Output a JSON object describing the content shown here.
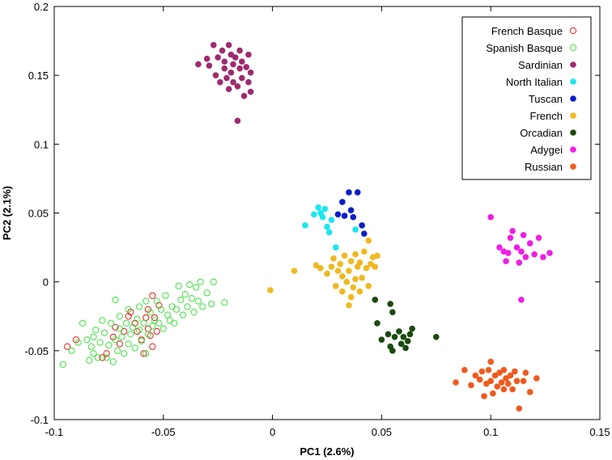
{
  "chart_data": {
    "type": "scatter",
    "title": "",
    "xlabel": "PC1 (2.6%)",
    "ylabel": "PC2 (2.1%)",
    "xlim": [
      -0.1,
      0.15
    ],
    "ylim": [
      -0.1,
      0.2
    ],
    "xticks": [
      -0.1,
      -0.05,
      0,
      0.05,
      0.1,
      0.15
    ],
    "xtick_labels": [
      "-0.1",
      "-0.05",
      "0",
      "0.05",
      "0.1",
      "0.15"
    ],
    "yticks": [
      -0.1,
      -0.05,
      0,
      0.05,
      0.1,
      0.15,
      0.2
    ],
    "ytick_labels": [
      "-0.1",
      "-0.05",
      "0",
      "0.05",
      "0.1",
      "0.15",
      "0.2"
    ],
    "grid": false,
    "legend_position": "top-right",
    "series": [
      {
        "name": "French Basque",
        "color": "#e31a1c",
        "marker": "open-circle",
        "points": [
          [
            -0.094,
            -0.047
          ],
          [
            -0.09,
            -0.042
          ],
          [
            -0.078,
            -0.055
          ],
          [
            -0.076,
            -0.052
          ],
          [
            -0.073,
            -0.04
          ],
          [
            -0.072,
            -0.033
          ],
          [
            -0.07,
            -0.045
          ],
          [
            -0.068,
            -0.036
          ],
          [
            -0.066,
            -0.025
          ],
          [
            -0.065,
            -0.022
          ],
          [
            -0.063,
            -0.03
          ],
          [
            -0.062,
            -0.036
          ],
          [
            -0.06,
            -0.042
          ],
          [
            -0.059,
            -0.052
          ],
          [
            -0.058,
            -0.026
          ],
          [
            -0.057,
            -0.02
          ],
          [
            -0.057,
            -0.034
          ],
          [
            -0.056,
            -0.039
          ],
          [
            -0.055,
            -0.047
          ],
          [
            -0.055,
            -0.01
          ],
          [
            -0.054,
            -0.026
          ],
          [
            -0.053,
            -0.036
          ],
          [
            -0.052,
            -0.017
          ]
        ]
      },
      {
        "name": "Spanish Basque",
        "color": "#3de03d",
        "marker": "open-circle",
        "points": [
          [
            -0.096,
            -0.06
          ],
          [
            -0.092,
            -0.05
          ],
          [
            -0.089,
            -0.044
          ],
          [
            -0.087,
            -0.03
          ],
          [
            -0.085,
            -0.042
          ],
          [
            -0.084,
            -0.057
          ],
          [
            -0.083,
            -0.047
          ],
          [
            -0.082,
            -0.04
          ],
          [
            -0.082,
            -0.052
          ],
          [
            -0.081,
            -0.035
          ],
          [
            -0.08,
            -0.055
          ],
          [
            -0.079,
            -0.044
          ],
          [
            -0.078,
            -0.028
          ],
          [
            -0.077,
            -0.037
          ],
          [
            -0.076,
            -0.055
          ],
          [
            -0.075,
            -0.046
          ],
          [
            -0.074,
            -0.03
          ],
          [
            -0.073,
            -0.058
          ],
          [
            -0.072,
            -0.013
          ],
          [
            -0.072,
            -0.042
          ],
          [
            -0.071,
            -0.05
          ],
          [
            -0.07,
            -0.025
          ],
          [
            -0.07,
            -0.034
          ],
          [
            -0.069,
            -0.04
          ],
          [
            -0.068,
            -0.052
          ],
          [
            -0.067,
            -0.03
          ],
          [
            -0.066,
            -0.045
          ],
          [
            -0.066,
            -0.02
          ],
          [
            -0.065,
            -0.038
          ],
          [
            -0.064,
            -0.033
          ],
          [
            -0.063,
            -0.048
          ],
          [
            -0.062,
            -0.027
          ],
          [
            -0.061,
            -0.018
          ],
          [
            -0.061,
            -0.035
          ],
          [
            -0.06,
            -0.043
          ],
          [
            -0.059,
            -0.03
          ],
          [
            -0.058,
            -0.052
          ],
          [
            -0.058,
            -0.014
          ],
          [
            -0.057,
            -0.038
          ],
          [
            -0.056,
            -0.022
          ],
          [
            -0.055,
            -0.032
          ],
          [
            -0.054,
            -0.028
          ],
          [
            -0.053,
            -0.014
          ],
          [
            -0.052,
            -0.03
          ],
          [
            -0.051,
            -0.02
          ],
          [
            -0.05,
            -0.034
          ],
          [
            -0.049,
            -0.01
          ],
          [
            -0.048,
            -0.024
          ],
          [
            -0.047,
            -0.028
          ],
          [
            -0.046,
            -0.018
          ],
          [
            -0.045,
            -0.03
          ],
          [
            -0.044,
            -0.02
          ],
          [
            -0.043,
            -0.003
          ],
          [
            -0.042,
            -0.013
          ],
          [
            -0.041,
            -0.024
          ],
          [
            -0.04,
            -0.009
          ],
          [
            -0.039,
            -0.018
          ],
          [
            -0.038,
            -0.002
          ],
          [
            -0.037,
            -0.012
          ],
          [
            -0.036,
            -0.022
          ],
          [
            -0.035,
            -0.004
          ],
          [
            -0.034,
            -0.014
          ],
          [
            -0.033,
            0.0
          ],
          [
            -0.032,
            -0.018
          ],
          [
            -0.03,
            -0.008
          ],
          [
            -0.028,
            -0.016
          ],
          [
            -0.027,
            0.0
          ],
          [
            -0.022,
            -0.015
          ]
        ]
      },
      {
        "name": "Sardinian",
        "color": "#9e2b6e",
        "marker": "filled-circle",
        "points": [
          [
            -0.034,
            0.158
          ],
          [
            -0.03,
            0.162
          ],
          [
            -0.029,
            0.157
          ],
          [
            -0.027,
            0.172
          ],
          [
            -0.026,
            0.15
          ],
          [
            -0.025,
            0.163
          ],
          [
            -0.024,
            0.145
          ],
          [
            -0.023,
            0.168
          ],
          [
            -0.022,
            0.155
          ],
          [
            -0.022,
            0.16
          ],
          [
            -0.021,
            0.148
          ],
          [
            -0.02,
            0.172
          ],
          [
            -0.02,
            0.14
          ],
          [
            -0.019,
            0.165
          ],
          [
            -0.019,
            0.152
          ],
          [
            -0.018,
            0.145
          ],
          [
            -0.018,
            0.158
          ],
          [
            -0.017,
            0.163
          ],
          [
            -0.016,
            0.142
          ],
          [
            -0.016,
            0.117
          ],
          [
            -0.015,
            0.155
          ],
          [
            -0.015,
            0.168
          ],
          [
            -0.014,
            0.148
          ],
          [
            -0.014,
            0.16
          ],
          [
            -0.013,
            0.135
          ],
          [
            -0.012,
            0.156
          ],
          [
            -0.011,
            0.165
          ],
          [
            -0.011,
            0.145
          ],
          [
            -0.01,
            0.152
          ],
          [
            -0.01,
            0.138
          ]
        ]
      },
      {
        "name": "North Italian",
        "color": "#1de6f0",
        "marker": "filled-circle",
        "points": [
          [
            0.015,
            0.041
          ],
          [
            0.019,
            0.049
          ],
          [
            0.021,
            0.054
          ],
          [
            0.022,
            0.05
          ],
          [
            0.023,
            0.047
          ],
          [
            0.024,
            0.053
          ],
          [
            0.025,
            0.04
          ],
          [
            0.026,
            0.036
          ],
          [
            0.027,
            0.045
          ],
          [
            0.029,
            0.025
          ],
          [
            0.038,
            0.038
          ]
        ]
      },
      {
        "name": "Tuscan",
        "color": "#0a1ec8",
        "marker": "filled-circle",
        "points": [
          [
            0.03,
            0.049
          ],
          [
            0.032,
            0.058
          ],
          [
            0.033,
            0.048
          ],
          [
            0.035,
            0.065
          ],
          [
            0.036,
            0.052
          ],
          [
            0.037,
            0.047
          ],
          [
            0.039,
            0.065
          ],
          [
            0.041,
            0.041
          ],
          [
            0.042,
            0.035
          ]
        ]
      },
      {
        "name": "French",
        "color": "#f0b820",
        "marker": "filled-circle",
        "points": [
          [
            -0.001,
            -0.006
          ],
          [
            0.01,
            0.008
          ],
          [
            0.02,
            0.012
          ],
          [
            0.022,
            0.01
          ],
          [
            0.025,
            0.006
          ],
          [
            0.027,
            0.011
          ],
          [
            0.028,
            0.017
          ],
          [
            0.029,
            -0.003
          ],
          [
            0.03,
            0.008
          ],
          [
            0.031,
            0.013
          ],
          [
            0.032,
            -0.007
          ],
          [
            0.032,
            0.004
          ],
          [
            0.033,
            0.019
          ],
          [
            0.034,
            0.0
          ],
          [
            0.035,
            -0.017
          ],
          [
            0.035,
            0.008
          ],
          [
            0.036,
            -0.011
          ],
          [
            0.036,
            0.015
          ],
          [
            0.037,
            -0.004
          ],
          [
            0.038,
            0.02
          ],
          [
            0.038,
            0.002
          ],
          [
            0.039,
            0.011
          ],
          [
            0.04,
            -0.007
          ],
          [
            0.04,
            0.014
          ],
          [
            0.041,
            0.003
          ],
          [
            0.042,
            0.022
          ],
          [
            0.043,
            0.01
          ],
          [
            0.044,
            0.03
          ],
          [
            0.044,
            -0.003
          ],
          [
            0.045,
            0.013
          ],
          [
            0.046,
            0.018
          ],
          [
            0.047,
            0.011
          ],
          [
            0.048,
            0.019
          ]
        ]
      },
      {
        "name": "Orcadian",
        "color": "#1a4a0f",
        "marker": "filled-circle",
        "points": [
          [
            0.047,
            -0.013
          ],
          [
            0.048,
            -0.03
          ],
          [
            0.05,
            -0.042
          ],
          [
            0.053,
            -0.038
          ],
          [
            0.054,
            -0.047
          ],
          [
            0.054,
            -0.016
          ],
          [
            0.055,
            -0.05
          ],
          [
            0.055,
            -0.022
          ],
          [
            0.056,
            -0.04
          ],
          [
            0.058,
            -0.036
          ],
          [
            0.059,
            -0.045
          ],
          [
            0.06,
            -0.04
          ],
          [
            0.061,
            -0.048
          ],
          [
            0.062,
            -0.043
          ],
          [
            0.063,
            -0.038
          ],
          [
            0.064,
            -0.034
          ],
          [
            0.075,
            -0.04
          ]
        ]
      },
      {
        "name": "Adygei",
        "color": "#f01ee6",
        "marker": "filled-circle",
        "points": [
          [
            0.1,
            0.047
          ],
          [
            0.104,
            0.025
          ],
          [
            0.106,
            0.022
          ],
          [
            0.107,
            0.015
          ],
          [
            0.108,
            0.021
          ],
          [
            0.109,
            0.032
          ],
          [
            0.11,
            0.037
          ],
          [
            0.112,
            0.025
          ],
          [
            0.113,
            0.014
          ],
          [
            0.114,
            0.022
          ],
          [
            0.114,
            -0.013
          ],
          [
            0.115,
            0.034
          ],
          [
            0.116,
            0.018
          ],
          [
            0.118,
            0.028
          ],
          [
            0.12,
            0.02
          ],
          [
            0.122,
            0.032
          ],
          [
            0.124,
            0.018
          ],
          [
            0.127,
            0.021
          ]
        ]
      },
      {
        "name": "Russian",
        "color": "#f05a1e",
        "marker": "filled-circle",
        "points": [
          [
            0.084,
            -0.073
          ],
          [
            0.088,
            -0.064
          ],
          [
            0.091,
            -0.075
          ],
          [
            0.093,
            -0.068
          ],
          [
            0.095,
            -0.071
          ],
          [
            0.096,
            -0.065
          ],
          [
            0.097,
            -0.083
          ],
          [
            0.098,
            -0.074
          ],
          [
            0.099,
            -0.064
          ],
          [
            0.1,
            -0.072
          ],
          [
            0.1,
            -0.058
          ],
          [
            0.101,
            -0.081
          ],
          [
            0.102,
            -0.068
          ],
          [
            0.103,
            -0.076
          ],
          [
            0.104,
            -0.066
          ],
          [
            0.105,
            -0.073
          ],
          [
            0.106,
            -0.078
          ],
          [
            0.106,
            -0.064
          ],
          [
            0.107,
            -0.07
          ],
          [
            0.108,
            -0.074
          ],
          [
            0.109,
            -0.068
          ],
          [
            0.11,
            -0.078
          ],
          [
            0.111,
            -0.065
          ],
          [
            0.112,
            -0.072
          ],
          [
            0.113,
            -0.092
          ],
          [
            0.115,
            -0.072
          ],
          [
            0.116,
            -0.066
          ],
          [
            0.118,
            -0.08
          ],
          [
            0.121,
            -0.07
          ]
        ]
      }
    ]
  }
}
